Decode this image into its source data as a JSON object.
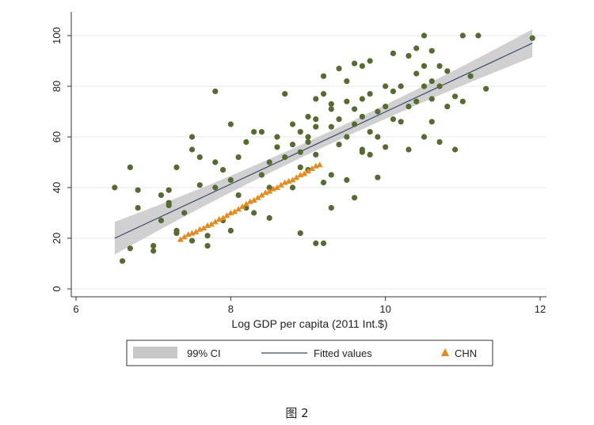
{
  "chart_data": {
    "type": "scatter",
    "title": "",
    "xlabel": "Log GDP per capita (2011 Int.$)",
    "ylabel": "",
    "xlim": [
      6,
      12
    ],
    "ylim": [
      -3,
      108
    ],
    "xticks": [
      "6",
      "8",
      "10",
      "12"
    ],
    "yticks": [
      "0",
      "20",
      "40",
      "60",
      "80",
      "100"
    ],
    "grid": true,
    "legend_position": "bottom",
    "legend": [
      "99% CI",
      "Fitted values",
      "CHN"
    ],
    "fit": {
      "x": [
        6.5,
        11.9
      ],
      "y": [
        20,
        97
      ],
      "ci_halfwidth_at_ends": [
        6.5,
        5.5
      ],
      "ci_halfwidth_center": 2.5
    },
    "colors": {
      "points": "#556b2f",
      "chn": "#e88a1a",
      "fit": "#3a4a6a",
      "ci": "#c8c8c8",
      "grid": "#e6e6e6"
    },
    "series": [
      {
        "name": "",
        "x": [
          6.5,
          6.6,
          6.7,
          6.7,
          6.8,
          6.8,
          7.0,
          7.0,
          7.1,
          7.1,
          7.2,
          7.2,
          7.2,
          7.3,
          7.3,
          7.3,
          7.4,
          7.5,
          7.5,
          7.5,
          7.6,
          7.6,
          7.7,
          7.7,
          7.8,
          7.8,
          7.8,
          7.9,
          7.9,
          8.0,
          8.0,
          8.0,
          8.1,
          8.1,
          8.2,
          8.2,
          8.3,
          8.3,
          8.4,
          8.4,
          8.5,
          8.5,
          8.5,
          8.6,
          8.6,
          8.7,
          8.7,
          8.8,
          8.8,
          8.8,
          8.9,
          8.9,
          8.9,
          9.0,
          9.0,
          9.0,
          9.0,
          9.1,
          9.1,
          9.1,
          9.1,
          9.2,
          9.2,
          9.2,
          9.3,
          9.3,
          9.3,
          9.3,
          9.4,
          9.4,
          9.4,
          9.5,
          9.5,
          9.5,
          9.5,
          9.6,
          9.6,
          9.6,
          9.7,
          9.7,
          9.7,
          9.7,
          9.8,
          9.8,
          9.8,
          9.8,
          9.9,
          9.9,
          9.9,
          10.0,
          10.0,
          10.0,
          10.1,
          10.1,
          10.1,
          10.2,
          10.2,
          10.3,
          10.3,
          10.3,
          10.4,
          10.4,
          10.4,
          10.5,
          10.5,
          10.5,
          10.5,
          10.6,
          10.6,
          10.6,
          10.6,
          10.7,
          10.7,
          10.7,
          10.8,
          10.8,
          10.9,
          10.9,
          11.0,
          11.0,
          11.1,
          11.2,
          11.3,
          11.9,
          9.1,
          9.3,
          9.2,
          8.9,
          9.7,
          9.6
        ],
        "y": [
          40,
          11,
          48,
          16,
          39,
          32,
          17,
          15,
          37,
          27,
          39,
          33,
          34,
          48,
          23,
          22,
          30,
          60,
          55,
          19,
          52,
          41,
          21,
          17,
          78,
          50,
          40,
          47,
          27,
          65,
          43,
          23,
          52,
          37,
          58,
          32,
          62,
          30,
          45,
          62,
          50,
          40,
          28,
          60,
          56,
          52,
          77,
          57,
          65,
          40,
          62,
          54,
          48,
          68,
          60,
          58,
          47,
          67,
          75,
          64,
          53,
          84,
          77,
          18,
          73,
          71,
          64,
          45,
          87,
          67,
          57,
          82,
          74,
          60,
          43,
          89,
          71,
          65,
          88,
          75,
          68,
          55,
          90,
          77,
          62,
          53,
          70,
          60,
          44,
          80,
          72,
          56,
          93,
          78,
          67,
          80,
          66,
          92,
          72,
          55,
          95,
          85,
          74,
          100,
          88,
          80,
          60,
          94,
          82,
          75,
          66,
          88,
          80,
          58,
          86,
          72,
          76,
          55,
          100,
          74,
          84,
          100,
          79,
          99,
          18,
          32,
          42,
          22,
          54,
          36
        ],
        "color": "#556b2f"
      },
      {
        "name": "CHN",
        "x": [
          7.35,
          7.4,
          7.45,
          7.5,
          7.55,
          7.6,
          7.65,
          7.7,
          7.75,
          7.8,
          7.85,
          7.9,
          7.95,
          8.0,
          8.05,
          8.1,
          8.15,
          8.2,
          8.25,
          8.3,
          8.35,
          8.4,
          8.45,
          8.5,
          8.55,
          8.6,
          8.65,
          8.7,
          8.75,
          8.8,
          8.85,
          8.9,
          8.95,
          9.0,
          9.05,
          9.1,
          9.15
        ],
        "y": [
          19.5,
          20.5,
          21.5,
          22,
          22.5,
          23.5,
          24,
          25,
          25.5,
          26.5,
          27.5,
          28,
          29,
          30,
          30.5,
          31.5,
          32.5,
          33.5,
          34.5,
          35,
          36,
          37,
          38,
          38.5,
          39.5,
          40,
          41,
          42,
          42.5,
          43,
          44,
          45,
          45.5,
          46.5,
          47.5,
          48.5,
          49
        ],
        "color": "#e88a1a"
      }
    ]
  },
  "caption": "图 2"
}
